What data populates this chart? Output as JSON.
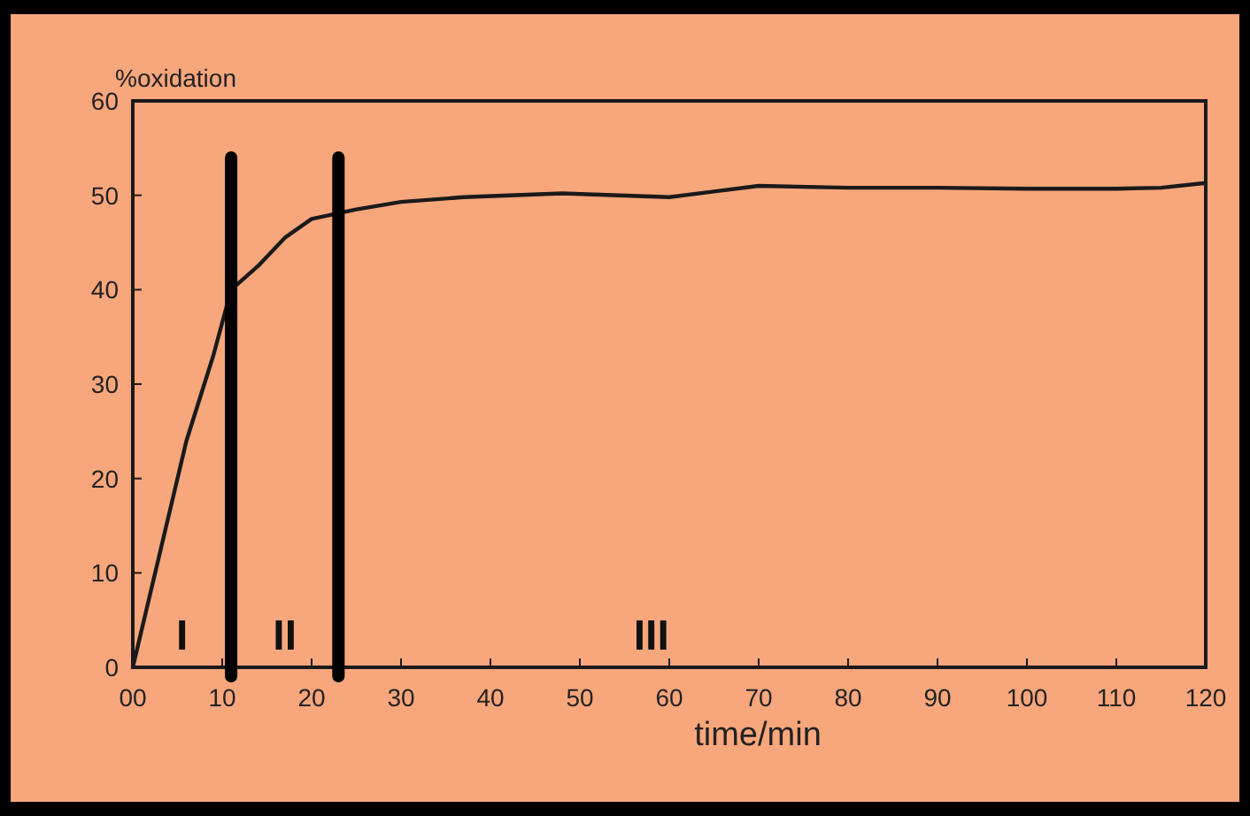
{
  "chart_data": {
    "type": "line",
    "xlabel": "time/min",
    "ylabel": "%oxidation",
    "xlim": [
      0,
      120
    ],
    "xticks": [
      {
        "value": 0,
        "label": "00"
      },
      10,
      20,
      30,
      40,
      50,
      60,
      70,
      80,
      90,
      100,
      110,
      120
    ],
    "ylim": [
      0,
      60
    ],
    "yticks": [
      0,
      10,
      20,
      30,
      40,
      50,
      60
    ],
    "series": [
      {
        "color": "#1a1a1a",
        "x": [
          0,
          3,
          6,
          9,
          11,
          14,
          17,
          20,
          25,
          30,
          37,
          48,
          60,
          65,
          70,
          80,
          90,
          100,
          110,
          115,
          120
        ],
        "values": [
          0,
          12,
          24,
          33,
          40,
          42.5,
          45.5,
          47.5,
          48.5,
          49.3,
          49.8,
          50.2,
          49.8,
          50.4,
          51,
          50.8,
          50.8,
          50.7,
          50.7,
          50.8,
          51.3
        ]
      }
    ],
    "ref_lines": [
      {
        "axis": "x",
        "value": 11,
        "color": "#000000"
      },
      {
        "axis": "x",
        "value": 23,
        "color": "#000000"
      }
    ],
    "annotations": [
      "I",
      "II",
      "III"
    ],
    "grid": false,
    "marker": "none",
    "line_style": "solid"
  }
}
